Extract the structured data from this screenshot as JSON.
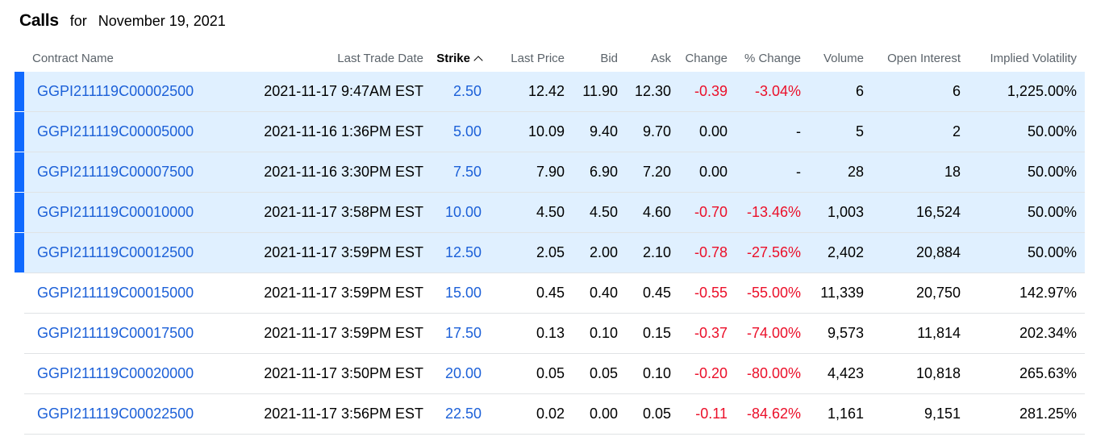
{
  "heading": {
    "title": "Calls",
    "for_label": "for",
    "date": "November 19, 2021"
  },
  "columns": {
    "contract_name": "Contract Name",
    "last_trade_date": "Last Trade Date",
    "strike": "Strike",
    "last_price": "Last Price",
    "bid": "Bid",
    "ask": "Ask",
    "change": "Change",
    "pct_change": "% Change",
    "volume": "Volume",
    "open_interest": "Open Interest",
    "implied_volatility": "Implied Volatility"
  },
  "colors": {
    "link": "#1c60d8",
    "negative": "#eb0f29",
    "in_the_money_bg": "#e0f0ff",
    "in_the_money_marker": "#0f69ff"
  },
  "rows": [
    {
      "in_the_money": true,
      "contract": "GGPI211119C00002500",
      "last_trade_date": "2021-11-17 9:47AM EST",
      "strike": "2.50",
      "last_price": "12.42",
      "bid": "11.90",
      "ask": "12.30",
      "change": "-0.39",
      "pct_change": "-3.04%",
      "volume": "6",
      "open_interest": "6",
      "implied_volatility": "1,225.00%"
    },
    {
      "in_the_money": true,
      "contract": "GGPI211119C00005000",
      "last_trade_date": "2021-11-16 1:36PM EST",
      "strike": "5.00",
      "last_price": "10.09",
      "bid": "9.40",
      "ask": "9.70",
      "change": "0.00",
      "pct_change": "-",
      "volume": "5",
      "open_interest": "2",
      "implied_volatility": "50.00%"
    },
    {
      "in_the_money": true,
      "contract": "GGPI211119C00007500",
      "last_trade_date": "2021-11-16 3:30PM EST",
      "strike": "7.50",
      "last_price": "7.90",
      "bid": "6.90",
      "ask": "7.20",
      "change": "0.00",
      "pct_change": "-",
      "volume": "28",
      "open_interest": "18",
      "implied_volatility": "50.00%"
    },
    {
      "in_the_money": true,
      "contract": "GGPI211119C00010000",
      "last_trade_date": "2021-11-17 3:58PM EST",
      "strike": "10.00",
      "last_price": "4.50",
      "bid": "4.50",
      "ask": "4.60",
      "change": "-0.70",
      "pct_change": "-13.46%",
      "volume": "1,003",
      "open_interest": "16,524",
      "implied_volatility": "50.00%"
    },
    {
      "in_the_money": true,
      "contract": "GGPI211119C00012500",
      "last_trade_date": "2021-11-17 3:59PM EST",
      "strike": "12.50",
      "last_price": "2.05",
      "bid": "2.00",
      "ask": "2.10",
      "change": "-0.78",
      "pct_change": "-27.56%",
      "volume": "2,402",
      "open_interest": "20,884",
      "implied_volatility": "50.00%"
    },
    {
      "in_the_money": false,
      "contract": "GGPI211119C00015000",
      "last_trade_date": "2021-11-17 3:59PM EST",
      "strike": "15.00",
      "last_price": "0.45",
      "bid": "0.40",
      "ask": "0.45",
      "change": "-0.55",
      "pct_change": "-55.00%",
      "volume": "11,339",
      "open_interest": "20,750",
      "implied_volatility": "142.97%"
    },
    {
      "in_the_money": false,
      "contract": "GGPI211119C00017500",
      "last_trade_date": "2021-11-17 3:59PM EST",
      "strike": "17.50",
      "last_price": "0.13",
      "bid": "0.10",
      "ask": "0.15",
      "change": "-0.37",
      "pct_change": "-74.00%",
      "volume": "9,573",
      "open_interest": "11,814",
      "implied_volatility": "202.34%"
    },
    {
      "in_the_money": false,
      "contract": "GGPI211119C00020000",
      "last_trade_date": "2021-11-17 3:50PM EST",
      "strike": "20.00",
      "last_price": "0.05",
      "bid": "0.05",
      "ask": "0.10",
      "change": "-0.20",
      "pct_change": "-80.00%",
      "volume": "4,423",
      "open_interest": "10,818",
      "implied_volatility": "265.63%"
    },
    {
      "in_the_money": false,
      "contract": "GGPI211119C00022500",
      "last_trade_date": "2021-11-17 3:56PM EST",
      "strike": "22.50",
      "last_price": "0.02",
      "bid": "0.00",
      "ask": "0.05",
      "change": "-0.11",
      "pct_change": "-84.62%",
      "volume": "1,161",
      "open_interest": "9,151",
      "implied_volatility": "281.25%"
    }
  ]
}
